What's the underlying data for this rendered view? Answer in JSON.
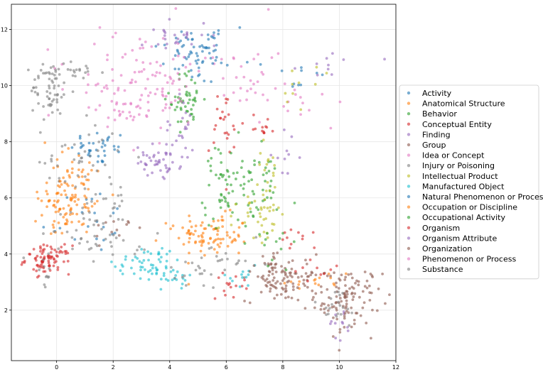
{
  "chart_data": {
    "type": "scatter",
    "title": "",
    "xlabel": "",
    "ylabel": "",
    "xlim": [
      -1.6,
      12.0
    ],
    "ylim": [
      0.2,
      12.9
    ],
    "x_ticks": [
      "0",
      "2",
      "4",
      "6",
      "8",
      "10",
      "12"
    ],
    "y_ticks": [
      "2",
      "4",
      "6",
      "8",
      "10",
      "12"
    ],
    "grid": true,
    "legend_position": "right",
    "series": [
      {
        "name": "Activity",
        "color": "#1f77b4",
        "clusters": [
          [
            4.8,
            11.2,
            0.7,
            0.5,
            40
          ],
          [
            1.5,
            7.8,
            0.5,
            0.3,
            25
          ],
          [
            1.0,
            5.2,
            0.8,
            0.6,
            20
          ],
          [
            8.5,
            10.3,
            0.5,
            0.4,
            10
          ]
        ]
      },
      {
        "name": "Anatomical Structure",
        "color": "#ff7f0e",
        "clusters": [
          [
            0.6,
            6.0,
            0.6,
            0.7,
            70
          ],
          [
            5.6,
            4.6,
            0.6,
            0.4,
            70
          ],
          [
            0.0,
            5.5,
            0.3,
            0.4,
            30
          ],
          [
            9.3,
            3.0,
            0.6,
            0.3,
            15
          ]
        ]
      },
      {
        "name": "Behavior",
        "color": "#2ca02c",
        "clusters": [
          [
            4.6,
            9.5,
            0.3,
            0.5,
            50
          ],
          [
            6.2,
            6.1,
            0.5,
            0.6,
            55
          ],
          [
            7.3,
            6.5,
            0.4,
            0.6,
            25
          ]
        ]
      },
      {
        "name": "Conceptual Entity",
        "color": "#d62728",
        "clusters": [
          [
            -0.3,
            3.8,
            0.4,
            0.25,
            85
          ],
          [
            6.0,
            8.5,
            0.3,
            0.8,
            25
          ],
          [
            7.3,
            8.6,
            0.2,
            0.2,
            12
          ]
        ]
      },
      {
        "name": "Finding",
        "color": "#9467bd",
        "clusters": [
          [
            3.6,
            7.3,
            0.4,
            0.3,
            30
          ],
          [
            4.3,
            8.5,
            0.25,
            0.6,
            20
          ],
          [
            10.0,
            1.5,
            0.2,
            0.3,
            12
          ],
          [
            9.8,
            11.0,
            0.6,
            0.4,
            10
          ]
        ]
      },
      {
        "name": "Group",
        "color": "#8c564b",
        "clusters": [
          [
            10.3,
            2.5,
            0.6,
            0.5,
            90
          ],
          [
            7.9,
            3.0,
            0.6,
            0.35,
            60
          ],
          [
            8.5,
            3.3,
            0.8,
            0.3,
            30
          ]
        ]
      },
      {
        "name": "Idea or Concept",
        "color": "#e377c2",
        "clusters": [
          [
            3.0,
            10.3,
            1.3,
            1.0,
            60
          ],
          [
            1.8,
            9.8,
            1.0,
            0.8,
            30
          ],
          [
            8.8,
            9.5,
            0.7,
            0.5,
            15
          ],
          [
            6.5,
            11.0,
            0.6,
            0.5,
            15
          ]
        ]
      },
      {
        "name": "Injury or Poisoning",
        "color": "#7f7f7f",
        "clusters": [
          [
            -0.2,
            9.9,
            0.35,
            0.5,
            60
          ],
          [
            0.7,
            10.5,
            0.4,
            0.2,
            20
          ],
          [
            1.5,
            5.8,
            0.6,
            0.7,
            35
          ],
          [
            9.8,
            2.1,
            0.5,
            0.4,
            20
          ],
          [
            -0.4,
            3.2,
            0.15,
            0.3,
            10
          ]
        ]
      },
      {
        "name": "Intellectual Product",
        "color": "#bcbd22",
        "clusters": [
          [
            7.5,
            6.2,
            0.3,
            0.9,
            40
          ],
          [
            6.8,
            5.0,
            0.4,
            0.5,
            15
          ],
          [
            9.0,
            10.0,
            0.6,
            0.4,
            10
          ]
        ]
      },
      {
        "name": "Manufactured Object",
        "color": "#17becf",
        "clusters": [
          [
            3.3,
            3.7,
            0.6,
            0.3,
            55
          ],
          [
            4.3,
            3.1,
            0.3,
            0.15,
            15
          ],
          [
            6.3,
            3.2,
            0.5,
            0.2,
            12
          ]
        ]
      },
      {
        "name": "Natural Phenomenon or Process",
        "color": "#1f77b4",
        "clusters": [
          [
            5.3,
            11.3,
            0.6,
            0.5,
            30
          ],
          [
            1.7,
            7.7,
            0.3,
            0.2,
            12
          ]
        ]
      },
      {
        "name": "Occupation or Discipline",
        "color": "#ff7f0e",
        "clusters": [
          [
            0.2,
            7.0,
            0.3,
            0.6,
            20
          ],
          [
            4.8,
            4.9,
            0.4,
            0.2,
            18
          ]
        ]
      },
      {
        "name": "Occupational Activity",
        "color": "#2ca02c",
        "clusters": [
          [
            6.0,
            7.3,
            0.4,
            0.4,
            15
          ],
          [
            7.8,
            4.5,
            0.4,
            0.4,
            12
          ]
        ]
      },
      {
        "name": "Organism",
        "color": "#d62728",
        "clusters": [
          [
            6.3,
            2.9,
            0.4,
            0.2,
            15
          ],
          [
            8.3,
            4.5,
            0.4,
            0.2,
            10
          ],
          [
            9.0,
            3.5,
            0.5,
            0.3,
            10
          ]
        ]
      },
      {
        "name": "Organism Attribute",
        "color": "#9467bd",
        "clusters": [
          [
            4.2,
            11.8,
            0.6,
            0.3,
            25
          ],
          [
            8.0,
            7.5,
            0.3,
            0.4,
            10
          ],
          [
            3.8,
            7.1,
            0.3,
            0.2,
            15
          ]
        ]
      },
      {
        "name": "Organization",
        "color": "#8c564b",
        "clusters": [
          [
            10.0,
            2.0,
            0.5,
            0.4,
            25
          ],
          [
            7.5,
            3.5,
            0.4,
            0.3,
            15
          ],
          [
            2.2,
            5.0,
            0.5,
            0.4,
            12
          ]
        ]
      },
      {
        "name": "Phenomenon or Process",
        "color": "#e377c2",
        "clusters": [
          [
            3.6,
            10.0,
            0.7,
            0.6,
            25
          ],
          [
            2.6,
            9.1,
            0.5,
            0.4,
            15
          ],
          [
            6.8,
            9.6,
            0.4,
            0.4,
            12
          ]
        ]
      },
      {
        "name": "Substance",
        "color": "#7f7f7f",
        "clusters": [
          [
            1.5,
            4.6,
            0.9,
            0.4,
            35
          ],
          [
            0.6,
            7.5,
            0.8,
            0.6,
            30
          ],
          [
            6.0,
            3.6,
            0.7,
            0.4,
            20
          ],
          [
            4.8,
            3.3,
            0.5,
            0.3,
            12
          ]
        ]
      }
    ]
  }
}
